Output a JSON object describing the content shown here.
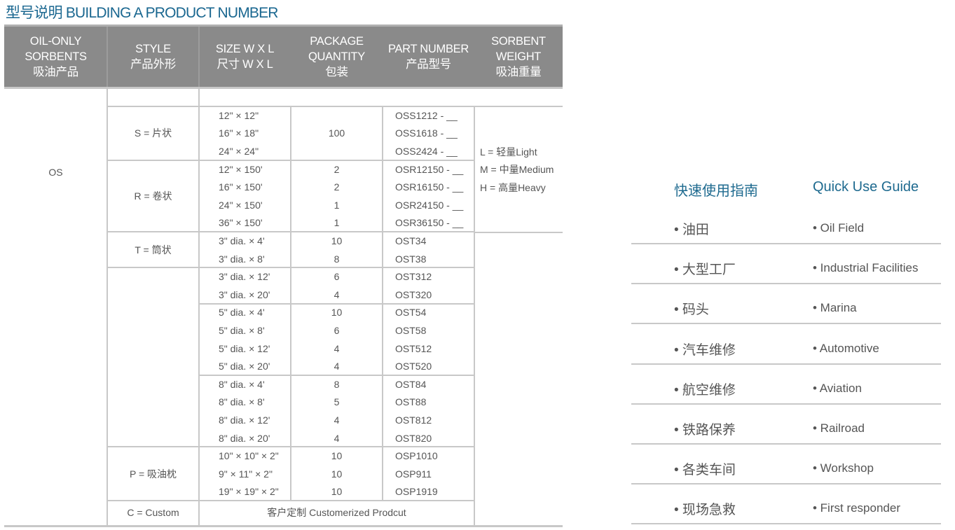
{
  "title": "型号说明 BUILDING A PRODUCT NUMBER",
  "header": [
    "OIL-ONLY\nSORBENTS\n吸油产品",
    "STYLE\n产品外形",
    "SIZE W X L\n尺寸 W X L",
    "PACKAGE\nQUANTITY\n包装",
    "PART  NUMBER\n产品型号",
    "SORBENT\nWEIGHT\n吸油重量"
  ],
  "category": "OS",
  "groups": [
    {
      "style": "S = 片状",
      "subs": [
        [
          [
            "12\" × 12\"",
            "",
            "OSS1212 - __"
          ],
          [
            "16\" × 18\"",
            "100",
            "OSS1618 - __"
          ],
          [
            "24\" × 24\"",
            "",
            "OSS2424 - __"
          ]
        ]
      ]
    },
    {
      "style": "R = 卷状",
      "subs": [
        [
          [
            "12\" × 150'",
            "2",
            "OSR12150 - __"
          ],
          [
            "16\" × 150'",
            "2",
            "OSR16150 - __"
          ],
          [
            "24\" × 150'",
            "1",
            "OSR24150 - __"
          ],
          [
            "36\" × 150'",
            "1",
            "OSR36150 - __"
          ]
        ]
      ]
    },
    {
      "style": "T = 筒状",
      "subs": [
        [
          [
            "3\" dia. × 4'",
            "10",
            "OST34"
          ],
          [
            "3\" dia. × 8'",
            "8",
            "OST38"
          ]
        ]
      ]
    },
    {
      "style": "",
      "subs": [
        [
          [
            "3\" dia. × 12'",
            "6",
            "OST312"
          ],
          [
            "3\" dia. × 20'",
            "4",
            "OST320"
          ]
        ],
        [
          [
            "5\" dia. × 4'",
            "10",
            "OST54"
          ],
          [
            "5\" dia. × 8'",
            "6",
            "OST58"
          ],
          [
            "5\" dia. × 12'",
            "4",
            "OST512"
          ],
          [
            "5\" dia. × 20'",
            "4",
            "OST520"
          ]
        ],
        [
          [
            "8\" dia. × 4'",
            "8",
            "OST84"
          ],
          [
            "8\" dia. × 8'",
            "5",
            "OST88"
          ],
          [
            "8\" dia. × 12'",
            "4",
            "OST812"
          ],
          [
            "8\" dia. × 20'",
            "4",
            "OST820"
          ]
        ]
      ]
    },
    {
      "style": "P = 吸油枕",
      "subs": [
        [
          [
            "10\" × 10\" × 2\"",
            "10",
            "OSP1010"
          ],
          [
            "9\" × 11\" × 2\"",
            "10",
            "OSP911"
          ],
          [
            "19\" × 19\" × 2\"",
            "10",
            "OSP1919"
          ]
        ]
      ]
    }
  ],
  "custom": {
    "style": "C = Custom",
    "text": "客户定制  Customerized  Prodcut"
  },
  "weights": [
    "L = 轻量Light",
    "M = 中量Medium",
    "H = 高量Heavy"
  ],
  "guide": {
    "title_cn": "快速使用指南",
    "title_en": "Quick Use Guide",
    "items": [
      {
        "cn": "• 油田",
        "en": "• Oil Field"
      },
      {
        "cn": "• 大型工厂",
        "en": "• Industrial Facilities"
      },
      {
        "cn": "• 码头",
        "en": "• Marina"
      },
      {
        "cn": "• 汽车维修",
        "en": "• Automotive"
      },
      {
        "cn": "• 航空维修",
        "en": "• Aviation"
      },
      {
        "cn": "• 铁路保养",
        "en": "• Railroad"
      },
      {
        "cn": "• 各类车间",
        "en": "• Workshop"
      },
      {
        "cn": "• 现场急救",
        "en": "• First responder"
      }
    ]
  }
}
